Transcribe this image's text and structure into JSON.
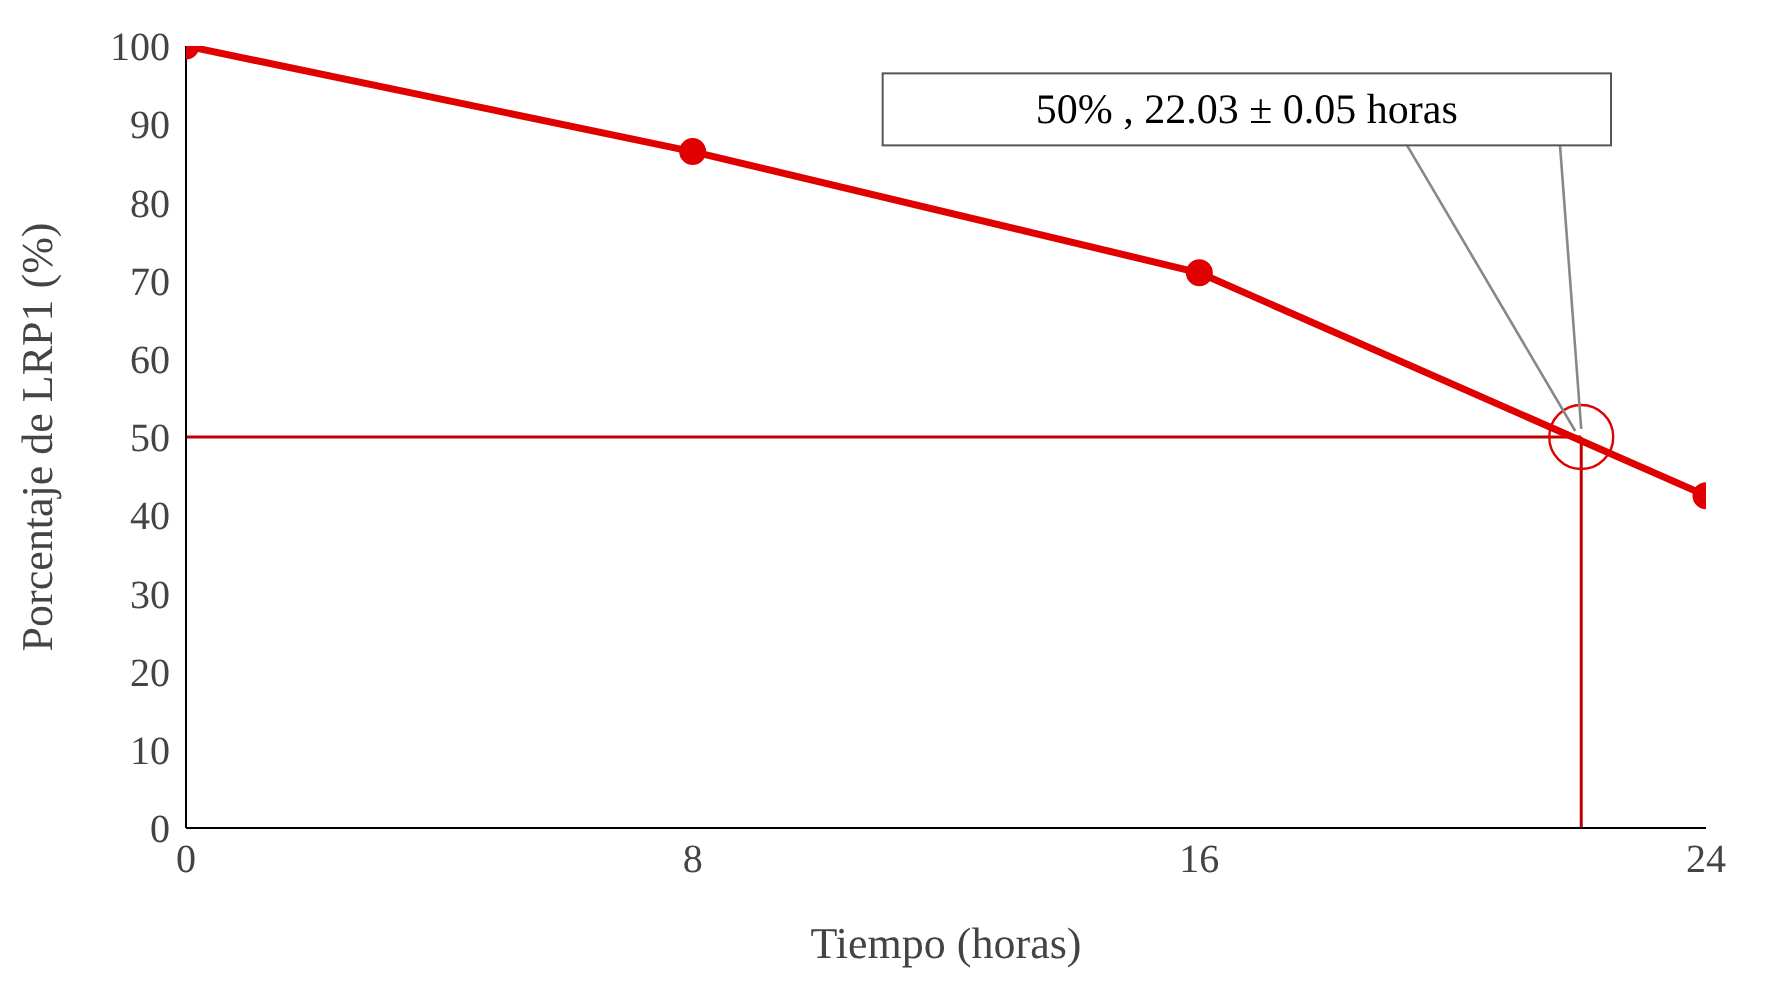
{
  "chart_data": {
    "type": "line",
    "xlabel": "Tiempo (horas)",
    "ylabel": "Porcentaje de LRP1 (%)",
    "x": [
      0,
      8,
      16,
      24
    ],
    "series": [
      {
        "color": "#e00000",
        "values": [
          100,
          86.5,
          71,
          42.5
        ]
      }
    ],
    "xlim": [
      0,
      24
    ],
    "xticks": [
      0,
      8,
      16,
      24
    ],
    "ylim": [
      0,
      100
    ],
    "yticks": [
      0,
      10,
      20,
      30,
      40,
      50,
      60,
      70,
      80,
      90,
      100
    ],
    "grid": false,
    "legend": false,
    "marker": "circle",
    "line_style": "solid",
    "ref_lines": [
      {
        "axis": "y",
        "value": 50,
        "color": "#c00000"
      },
      {
        "axis": "x",
        "value": 22.03,
        "color": "#c00000"
      }
    ],
    "annotations": [
      {
        "text": "50% , 22.03 ± 0.05 horas",
        "x": 22.03,
        "y": 50
      }
    ]
  }
}
